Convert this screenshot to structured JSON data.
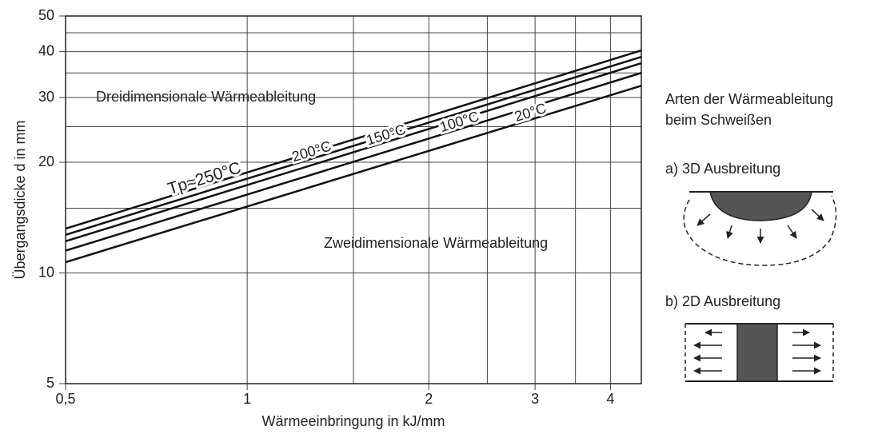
{
  "chart_data": {
    "type": "line",
    "y_label": "Übergangsdicke d in mm",
    "x_label": "Wärmeeinbringung in kJ/mm",
    "log_x": true,
    "log_y": true,
    "grid": true,
    "xlim": [
      0.5,
      4.5
    ],
    "ylim": [
      5,
      50
    ],
    "xticks": [
      {
        "value": 0.5,
        "label": "0,5"
      },
      1,
      2,
      3,
      4
    ],
    "minor_xticks": [
      1.5,
      2.5,
      3.5
    ],
    "yticks": [
      5,
      10,
      20,
      30,
      40,
      50
    ],
    "minor_yticks": [
      15,
      25,
      35,
      45
    ],
    "x": [
      0.5,
      4.5
    ],
    "series": [
      {
        "name": "Tp≈250°C",
        "color": "#111111",
        "values": [
          13.2,
          40.3
        ]
      },
      {
        "name": "200°C",
        "color": "#111111",
        "values": [
          12.7,
          38.7
        ]
      },
      {
        "name": "150°C",
        "color": "#111111",
        "values": [
          12.2,
          37.2
        ]
      },
      {
        "name": "100°C",
        "color": "#111111",
        "values": [
          11.5,
          35.0
        ]
      },
      {
        "name": "20°C",
        "color": "#111111",
        "values": [
          10.7,
          32.3
        ]
      }
    ],
    "annotations": [
      "Dreidimensionale Wärmeableitung",
      "Zweidimensionale Wärmeableitung"
    ]
  },
  "side_panel": {
    "title": [
      "Arten der Wärmeableitung",
      "beim Schweißen"
    ],
    "a": "a) 3D Ausbreitung",
    "b": "b) 2D Ausbreitung"
  }
}
